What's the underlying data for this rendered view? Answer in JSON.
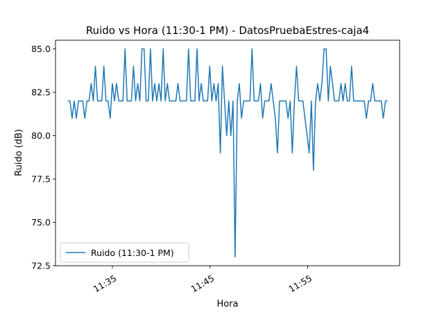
{
  "chart_data": {
    "type": "line",
    "title": "Ruido vs Hora (11:30-1 PM) - DatosPruebaEstres-caja4",
    "xlabel": "Hora",
    "ylabel": "Ruido (dB)",
    "ylim": [
      72.5,
      85.5
    ],
    "yticks": [
      "72.5",
      "75.0",
      "77.5",
      "80.0",
      "82.5",
      "85.0"
    ],
    "xlim": [
      "11:29:11",
      "12:04:24"
    ],
    "xticks": [
      "11:35",
      "11:45",
      "11:55"
    ],
    "legend": {
      "placement": "lower-left"
    },
    "grid": false,
    "series": [
      {
        "name": "Ruido (11:30-1 PM)",
        "color": "#1f77b4",
        "x": [
          "11:30:27",
          "11:30:40",
          "11:30:53",
          "11:31:06",
          "11:31:19",
          "11:31:32",
          "11:31:58",
          "11:32:11",
          "11:32:24",
          "11:32:37",
          "11:32:50",
          "11:33:03",
          "11:33:16",
          "11:33:29",
          "11:33:42",
          "11:33:55",
          "11:34:08",
          "11:34:21",
          "11:34:34",
          "11:34:47",
          "11:35:00",
          "11:35:13",
          "11:35:26",
          "11:35:39",
          "11:35:52",
          "11:36:05",
          "11:36:18",
          "11:36:31",
          "11:36:44",
          "11:36:57",
          "11:37:10",
          "11:37:23",
          "11:37:36",
          "11:37:49",
          "11:38:02",
          "11:38:15",
          "11:38:28",
          "11:38:41",
          "11:38:54",
          "11:39:07",
          "11:39:20",
          "11:39:33",
          "11:39:46",
          "11:39:59",
          "11:40:12",
          "11:40:25",
          "11:40:38",
          "11:40:51",
          "11:41:04",
          "11:41:17",
          "11:41:30",
          "11:41:43",
          "11:41:56",
          "11:42:09",
          "11:42:22",
          "11:42:35",
          "11:42:48",
          "11:43:01",
          "11:43:14",
          "11:43:27",
          "11:43:40",
          "11:43:53",
          "11:44:06",
          "11:44:19",
          "11:44:32",
          "11:44:45",
          "11:44:58",
          "11:45:11",
          "11:45:24",
          "11:45:37",
          "11:45:50",
          "11:46:03",
          "11:46:16",
          "11:46:29",
          "11:46:42",
          "11:46:55",
          "11:47:08",
          "11:47:21",
          "11:47:34",
          "11:47:47",
          "11:48:00",
          "11:48:13",
          "11:48:26",
          "11:48:39",
          "11:48:52",
          "11:49:05",
          "11:49:18",
          "11:49:31",
          "11:49:44",
          "11:49:57",
          "11:50:10",
          "11:50:23",
          "11:50:36",
          "11:50:49",
          "11:51:02",
          "11:51:15",
          "11:51:28",
          "11:51:41",
          "11:51:54",
          "11:52:07",
          "11:52:20",
          "11:52:33",
          "11:52:46",
          "11:52:59",
          "11:53:12",
          "11:53:25",
          "11:53:38",
          "11:53:51",
          "11:54:04",
          "11:54:17",
          "11:54:30",
          "11:54:43",
          "11:54:56",
          "11:55:09",
          "11:55:22",
          "11:55:35",
          "11:55:48",
          "11:56:01",
          "11:56:14",
          "11:56:27",
          "11:56:40",
          "11:56:53",
          "11:57:06",
          "11:57:19",
          "11:57:32",
          "11:57:45",
          "11:57:58",
          "11:58:11",
          "11:58:24",
          "11:58:37",
          "11:58:50",
          "11:59:03",
          "11:59:16",
          "11:59:29",
          "11:59:42",
          "11:59:55",
          "12:00:08",
          "12:00:21",
          "12:00:34",
          "12:00:47",
          "12:01:00",
          "12:01:13",
          "12:01:26",
          "12:01:39",
          "12:01:52",
          "12:02:05",
          "12:02:18",
          "12:02:31",
          "12:02:44",
          "12:02:57",
          "12:03:10"
        ],
        "values": [
          82,
          82,
          81,
          82,
          81,
          82,
          82,
          81,
          82,
          82,
          83,
          82,
          84,
          82,
          82,
          82,
          84,
          82,
          82,
          81,
          83,
          82,
          83,
          82,
          82,
          82,
          85,
          82,
          82,
          82,
          84,
          82,
          83,
          82,
          85,
          85,
          82,
          82,
          85,
          82,
          83,
          82,
          83,
          82,
          85,
          82,
          83,
          82,
          82,
          82,
          82,
          83,
          82,
          82,
          82,
          82,
          85,
          82,
          82,
          82,
          85,
          82,
          83,
          82,
          82,
          82,
          84,
          82,
          83,
          82,
          83,
          79,
          84,
          82,
          80,
          82,
          80,
          82,
          73,
          82,
          83,
          81,
          82,
          82,
          82,
          82,
          85,
          82,
          82,
          82,
          83,
          81,
          82,
          82,
          82,
          83,
          82,
          81,
          79,
          82,
          82,
          82,
          82,
          81,
          82,
          79,
          82,
          84,
          82,
          82,
          82,
          81,
          80,
          79,
          82,
          78,
          82,
          83,
          82,
          83,
          85,
          85,
          82,
          84,
          83,
          82,
          82,
          82,
          83,
          82,
          83,
          82,
          82,
          84,
          82,
          82,
          82,
          82,
          82,
          82,
          81,
          82,
          82,
          83,
          82,
          82,
          82,
          82,
          81,
          82,
          82
        ]
      }
    ]
  }
}
